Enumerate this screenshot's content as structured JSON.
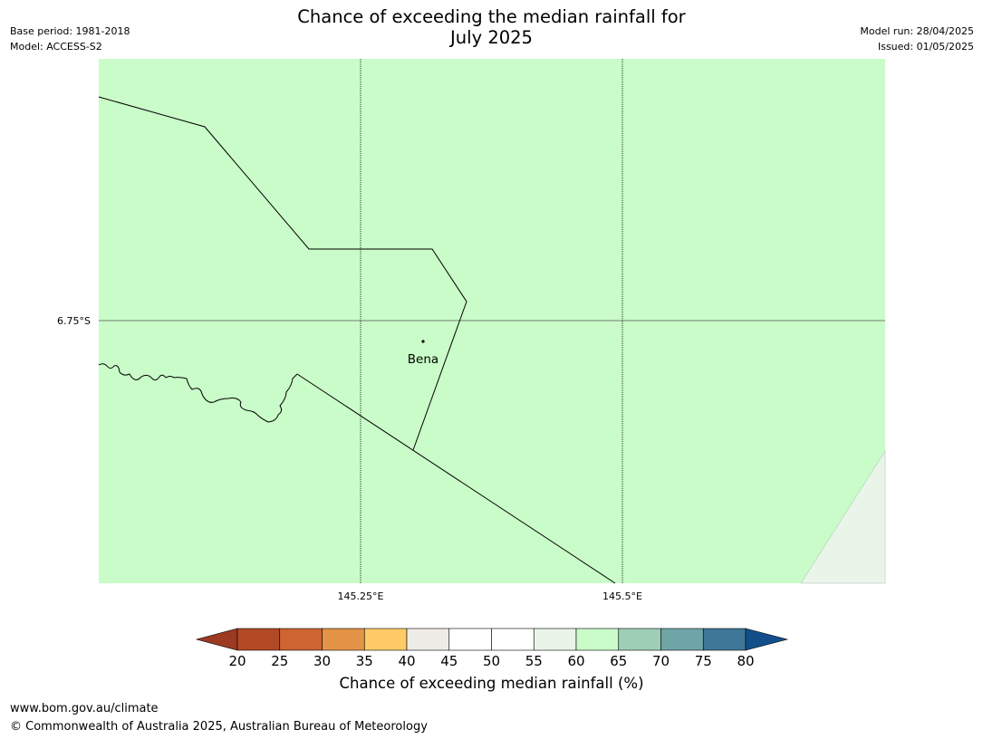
{
  "header": {
    "title": "Chance of exceeding the median rainfall for\nJuly 2025",
    "base_period": "Base period: 1981-2018",
    "model": "Model: ACCESS-S2",
    "model_run": "Model run: 28/04/2025",
    "issued": "Issued: 01/05/2025"
  },
  "map": {
    "fill_color": "#c9fcc8",
    "corner_fill_color": "#eaf5e9",
    "place_label": "Bena",
    "lat_label": "6.75°S",
    "lon_labels": [
      "145.25°E",
      "145.5°E"
    ]
  },
  "colorbar": {
    "label": "Chance of exceeding median rainfall (%)",
    "ticks": [
      "20",
      "25",
      "30",
      "35",
      "40",
      "45",
      "50",
      "55",
      "60",
      "65",
      "70",
      "75",
      "80"
    ],
    "colors": [
      "#9c3a22",
      "#b34a26",
      "#cd6431",
      "#e39447",
      "#fecb66",
      "#efebe7",
      "#ffffff",
      "#ffffff",
      "#eaf5e9",
      "#c9fcc8",
      "#9dcfb7",
      "#70a5a8",
      "#3f7798",
      "#124f8a"
    ]
  },
  "footer": {
    "url": "www.bom.gov.au/climate",
    "copyright": "© Commonwealth of Australia 2025, Australian Bureau of Meteorology"
  }
}
